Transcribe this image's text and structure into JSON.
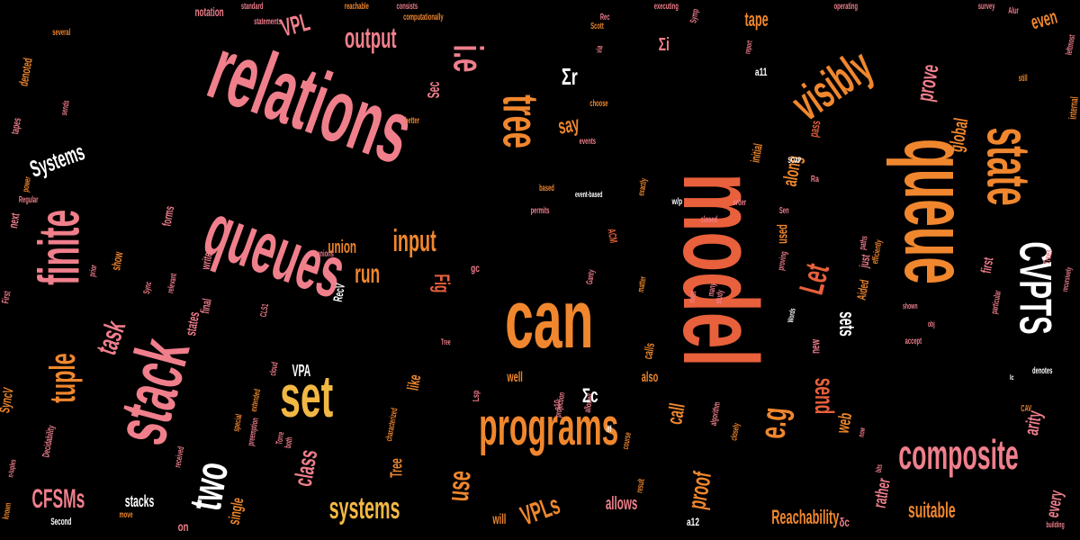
{
  "palette": {
    "background": "#000000",
    "pink": "#f07f8c",
    "orange": "#f0872e",
    "red_orange": "#e8603c",
    "gold": "#f2b844",
    "white": "#ffffff",
    "dark_red": "#7a2620"
  },
  "words": [
    {
      "text": "model",
      "color": "red_orange"
    },
    {
      "text": "relations",
      "color": "pink"
    },
    {
      "text": "queue",
      "color": "orange"
    },
    {
      "text": "queues",
      "color": "pink"
    },
    {
      "text": "state",
      "color": "orange"
    },
    {
      "text": "can",
      "color": "orange"
    },
    {
      "text": "stack",
      "color": "pink"
    },
    {
      "text": "programs",
      "color": "orange"
    },
    {
      "text": "set",
      "color": "gold"
    },
    {
      "text": "finite",
      "color": "pink"
    },
    {
      "text": "visibly",
      "color": "orange"
    },
    {
      "text": "tree",
      "color": "orange"
    },
    {
      "text": "CVPTS",
      "color": "white"
    },
    {
      "text": "composite",
      "color": "pink"
    },
    {
      "text": "two",
      "color": "white"
    },
    {
      "text": "tuple",
      "color": "orange"
    },
    {
      "text": "i.e",
      "color": "pink"
    },
    {
      "text": "e.g",
      "color": "orange"
    },
    {
      "text": "systems",
      "color": "gold"
    },
    {
      "text": "output",
      "color": "pink"
    },
    {
      "text": "VPL",
      "color": "pink"
    },
    {
      "text": "input",
      "color": "orange"
    },
    {
      "text": "task",
      "color": "pink"
    },
    {
      "text": "run",
      "color": "orange"
    },
    {
      "text": "Let",
      "color": "red_orange"
    },
    {
      "text": "CFSMs",
      "color": "pink"
    },
    {
      "text": "Systems",
      "color": "white"
    },
    {
      "text": "sets",
      "color": "white"
    },
    {
      "text": "send",
      "color": "red_orange"
    },
    {
      "text": "VPLs",
      "color": "orange"
    },
    {
      "text": "Reachability",
      "color": "orange"
    },
    {
      "text": "Fig",
      "color": "red_orange"
    },
    {
      "text": "use",
      "color": "orange"
    },
    {
      "text": "call",
      "color": "orange"
    },
    {
      "text": "prove",
      "color": "pink"
    },
    {
      "text": "say",
      "color": "orange"
    },
    {
      "text": "tape",
      "color": "orange"
    },
    {
      "text": "global",
      "color": "orange"
    },
    {
      "text": "even",
      "color": "orange"
    },
    {
      "text": "along",
      "color": "orange"
    },
    {
      "text": "class",
      "color": "pink"
    },
    {
      "text": "proof",
      "color": "orange"
    },
    {
      "text": "arity",
      "color": "pink"
    },
    {
      "text": "suitable",
      "color": "orange"
    },
    {
      "text": "rather",
      "color": "pink"
    },
    {
      "text": "allows",
      "color": "pink"
    },
    {
      "text": "union",
      "color": "orange"
    },
    {
      "text": "web",
      "color": "orange"
    },
    {
      "text": "stacks",
      "color": "white"
    },
    {
      "text": "single",
      "color": "orange"
    },
    {
      "text": "VPA",
      "color": "white"
    },
    {
      "text": "Tree",
      "color": "orange"
    },
    {
      "text": "every",
      "color": "pink"
    },
    {
      "text": "like",
      "color": "orange"
    },
    {
      "text": "will",
      "color": "orange"
    },
    {
      "text": "used",
      "color": "orange"
    },
    {
      "text": "Sec",
      "color": "pink"
    },
    {
      "text": "states",
      "color": "pink"
    },
    {
      "text": "forms",
      "color": "pink"
    },
    {
      "text": "notation",
      "color": "pink"
    },
    {
      "text": "denoted",
      "color": "orange"
    },
    {
      "text": "well",
      "color": "orange"
    },
    {
      "text": "first",
      "color": "pink"
    },
    {
      "text": "also",
      "color": "orange"
    },
    {
      "text": "calls",
      "color": "orange"
    },
    {
      "text": "new",
      "color": "pink"
    },
    {
      "text": "SyncV",
      "color": "orange"
    },
    {
      "text": "show",
      "color": "orange"
    },
    {
      "text": "write",
      "color": "pink"
    },
    {
      "text": "RecV",
      "color": "white"
    },
    {
      "text": "next",
      "color": "pink"
    },
    {
      "text": "final",
      "color": "pink"
    },
    {
      "text": "initial",
      "color": "orange"
    },
    {
      "text": "internal",
      "color": "orange"
    },
    {
      "text": "just",
      "color": "pink"
    },
    {
      "text": "Aided",
      "color": "orange"
    },
    {
      "text": "ACM",
      "color": "red_orange"
    },
    {
      "text": "Second",
      "color": "white"
    },
    {
      "text": "known",
      "color": "orange"
    },
    {
      "text": "reachable",
      "color": "orange"
    },
    {
      "text": "consists",
      "color": "pink"
    },
    {
      "text": "standard",
      "color": "pink"
    },
    {
      "text": "executing",
      "color": "pink"
    },
    {
      "text": "computationally",
      "color": "orange"
    },
    {
      "text": "operating",
      "color": "pink"
    },
    {
      "text": "survey",
      "color": "pink"
    },
    {
      "text": "still",
      "color": "orange"
    },
    {
      "text": "leftmost",
      "color": "pink"
    },
    {
      "text": "tapes",
      "color": "pink"
    },
    {
      "text": "power",
      "color": "orange"
    },
    {
      "text": "Regular",
      "color": "pink"
    },
    {
      "text": "sends",
      "color": "pink"
    },
    {
      "text": "better",
      "color": "orange"
    },
    {
      "text": "choose",
      "color": "orange"
    },
    {
      "text": "statements",
      "color": "pink"
    },
    {
      "text": "several",
      "color": "orange"
    },
    {
      "text": "events",
      "color": "pink"
    },
    {
      "text": "Scott",
      "color": "orange"
    },
    {
      "text": "Rec",
      "color": "pink"
    },
    {
      "text": "Symp",
      "color": "pink"
    },
    {
      "text": "via",
      "color": "pink"
    },
    {
      "text": "SOAP",
      "color": "white"
    },
    {
      "text": "paths",
      "color": "pink"
    },
    {
      "text": "efficiently",
      "color": "orange"
    },
    {
      "text": "Words",
      "color": "white"
    },
    {
      "text": "based",
      "color": "orange"
    },
    {
      "text": "permits",
      "color": "pink"
    },
    {
      "text": "event-based",
      "color": "white"
    },
    {
      "text": "CLS1",
      "color": "pink"
    },
    {
      "text": "Decidability",
      "color": "pink"
    },
    {
      "text": "n-tuples",
      "color": "pink"
    },
    {
      "text": "extended",
      "color": "orange"
    },
    {
      "text": "characterized",
      "color": "orange"
    },
    {
      "text": "received",
      "color": "pink"
    },
    {
      "text": "special",
      "color": "orange"
    },
    {
      "text": "preemption",
      "color": "pink"
    },
    {
      "text": "projection",
      "color": "pink"
    },
    {
      "text": "closely",
      "color": "orange"
    },
    {
      "text": "allowed",
      "color": "pink"
    },
    {
      "text": "algorithm",
      "color": "pink"
    },
    {
      "text": "iff",
      "color": "white"
    },
    {
      "text": "result",
      "color": "orange"
    },
    {
      "text": "Sen",
      "color": "pink"
    },
    {
      "text": "proving",
      "color": "pink"
    },
    {
      "text": "particular",
      "color": "pink"
    },
    {
      "text": "exist",
      "color": "pink"
    },
    {
      "text": "study",
      "color": "pink"
    },
    {
      "text": "many",
      "color": "pink"
    },
    {
      "text": "matter",
      "color": "orange"
    },
    {
      "text": "Ganty",
      "color": "pink"
    },
    {
      "text": "unions",
      "color": "pink"
    },
    {
      "text": "exactly",
      "color": "orange"
    },
    {
      "text": "relevant",
      "color": "pink"
    },
    {
      "text": "cloud",
      "color": "pink"
    },
    {
      "text": "Sync",
      "color": "pink"
    },
    {
      "text": "order",
      "color": "pink"
    },
    {
      "text": "recursively",
      "color": "pink"
    },
    {
      "text": "denotes",
      "color": "white"
    },
    {
      "text": "CAV",
      "color": "orange"
    },
    {
      "text": "Trees",
      "color": "pink"
    },
    {
      "text": "First",
      "color": "pink"
    },
    {
      "text": "move",
      "color": "orange"
    },
    {
      "text": "both",
      "color": "pink"
    },
    {
      "text": "building",
      "color": "pink"
    },
    {
      "text": "closed",
      "color": "pink"
    },
    {
      "text": "shown",
      "color": "pink"
    },
    {
      "text": "accept",
      "color": "pink"
    },
    {
      "text": "Torre",
      "color": "pink"
    },
    {
      "text": "course",
      "color": "orange"
    },
    {
      "text": "Alur",
      "color": "pink"
    },
    {
      "text": "prior",
      "color": "pink"
    },
    {
      "text": "report",
      "color": "pink"
    },
    {
      "text": "bits",
      "color": "pink"
    },
    {
      "text": "now",
      "color": "pink"
    },
    {
      "text": "obj",
      "color": "pink"
    },
    {
      "text": "Tree",
      "color": "pink"
    },
    {
      "text": "pass",
      "color": "red_orange"
    },
    {
      "text": "Σr",
      "color": "white"
    },
    {
      "text": "Σi",
      "color": "pink"
    },
    {
      "text": "Σc",
      "color": "white"
    },
    {
      "text": "a11",
      "color": "white"
    },
    {
      "text": "a12",
      "color": "white"
    },
    {
      "text": "a10",
      "color": "pink"
    },
    {
      "text": "δc",
      "color": "pink"
    },
    {
      "text": "Lsp",
      "color": "pink"
    },
    {
      "text": "Ra",
      "color": "pink"
    },
    {
      "text": "on",
      "color": "pink"
    },
    {
      "text": "w/p",
      "color": "white"
    },
    {
      "text": "lc",
      "color": "white"
    },
    {
      "text": "gc",
      "color": "pink"
    }
  ]
}
